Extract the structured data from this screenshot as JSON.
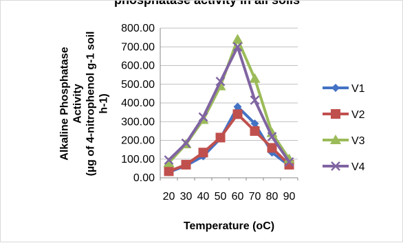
{
  "chart_data": {
    "type": "line",
    "title": "phosphatase activity in all soils",
    "xlabel": "Temperature (oC)",
    "ylabel_lines": [
      "Alkaline Phosphatase",
      "Activity",
      "(µg of 4-nitrophenol g-1 soil",
      "h-1)"
    ],
    "categories": [
      "20",
      "30",
      "40",
      "50",
      "60",
      "70",
      "80",
      "90"
    ],
    "y_tick_labels": [
      "0.00",
      "100.00",
      "200.00",
      "300.00",
      "400.00",
      "500.00",
      "600.00",
      "700.00",
      "800.00"
    ],
    "ylim": [
      0,
      800
    ],
    "grid": "horizontal",
    "legend_position": "right",
    "series": [
      {
        "name": "V1",
        "color": "#4472C4",
        "marker": "diamond",
        "values": [
          30,
          65,
          115,
          210,
          380,
          290,
          135,
          65
        ]
      },
      {
        "name": "V2",
        "color": "#C0504D",
        "marker": "square",
        "values": [
          35,
          70,
          135,
          215,
          340,
          250,
          160,
          70
        ]
      },
      {
        "name": "V3",
        "color": "#9BBB59",
        "marker": "triangle",
        "values": [
          80,
          180,
          310,
          490,
          740,
          530,
          240,
          100
        ]
      },
      {
        "name": "V4",
        "color": "#8064A2",
        "marker": "x",
        "values": [
          95,
          185,
          325,
          515,
          700,
          415,
          220,
          85
        ]
      }
    ]
  }
}
